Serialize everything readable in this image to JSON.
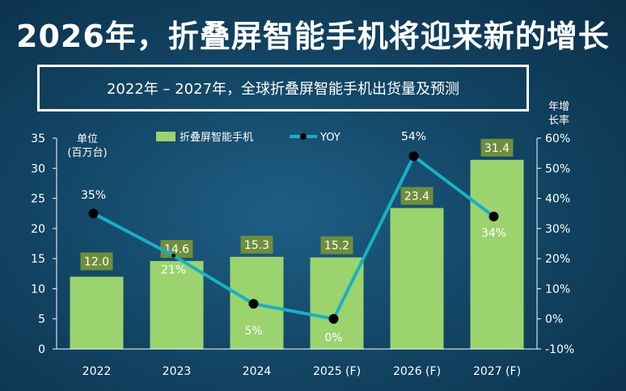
{
  "headline": "2026年，折叠屏智能手机将迎来新的增长",
  "chart_data": {
    "type": "bar+line",
    "title": "2022年 – 2027年，全球折叠屏智能手机出货量及预测",
    "categories": [
      "2022",
      "2023",
      "2024",
      "2025 (F)",
      "2026 (F)",
      "2027 (F)"
    ],
    "series": [
      {
        "name": "折叠屏智能手机",
        "type": "bar",
        "axis": "left",
        "values": [
          12.0,
          14.6,
          15.3,
          15.2,
          23.4,
          31.4
        ],
        "labels": [
          "12.0",
          "14.6",
          "15.3",
          "15.2",
          "23.4",
          "31.4"
        ]
      },
      {
        "name": "YOY",
        "type": "line",
        "axis": "right",
        "values": [
          35,
          21,
          5,
          0,
          54,
          34
        ],
        "labels": [
          "35%",
          "21%",
          "5%",
          "0%",
          "54%",
          "34%"
        ]
      }
    ],
    "ylabel_left": [
      "单位",
      "(百万台)"
    ],
    "ylabel_right": [
      "年增",
      "长率"
    ],
    "ylim_left": [
      0,
      35
    ],
    "yticks_left": [
      "0",
      "5",
      "10",
      "15",
      "20",
      "25",
      "30",
      "35"
    ],
    "ylim_right": [
      -10,
      60
    ],
    "yticks_right": [
      "-10%",
      "0%",
      "10%",
      "20%",
      "30%",
      "40%",
      "50%",
      "60%"
    ],
    "legend_position": "top-center",
    "grid": false,
    "colors": {
      "bar": "#9bd36e",
      "bar_label_bg": "#6f8e3c",
      "line": "#1ab0c4",
      "marker": "#000000"
    }
  }
}
